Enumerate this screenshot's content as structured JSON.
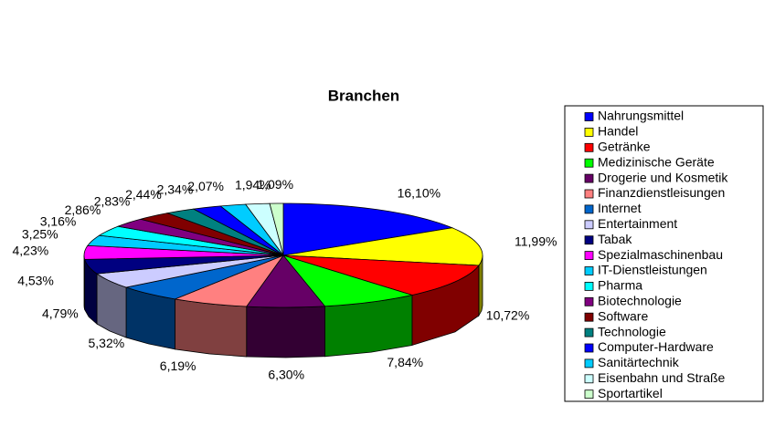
{
  "chart_data": {
    "type": "pie3d",
    "title": "Branchen",
    "categories": [
      "Nahrungsmittel",
      "Handel",
      "Getränke",
      "Medizinische Geräte",
      "Drogerie und Kosmetik",
      "Finanzdienstleisungen",
      "Internet",
      "Entertainment",
      "Tabak",
      "Spezialmaschinenbau",
      "IT-Dienstleistungen",
      "Pharma",
      "Biotechnologie",
      "Software",
      "Technologie",
      "Computer-Hardware",
      "Sanitärtechnik",
      "Eisenbahn und Straße",
      "Sportartikel"
    ],
    "values": [
      16.1,
      11.99,
      10.72,
      7.84,
      6.3,
      6.19,
      5.32,
      4.79,
      4.53,
      4.23,
      3.25,
      3.16,
      2.86,
      2.83,
      2.44,
      2.34,
      2.07,
      1.94,
      1.09
    ],
    "value_labels": [
      "16,10%",
      "11,99%",
      "10,72%",
      "7,84%",
      "6,30%",
      "6,19%",
      "5,32%",
      "4,79%",
      "4,53%",
      "4,23%",
      "3,25%",
      "3,16%",
      "2,86%",
      "2,83%",
      "2,44%",
      "2,34%",
      "2,07%",
      "1,94%",
      "1,09%"
    ],
    "colors": [
      "#0000ff",
      "#ffff00",
      "#ff0000",
      "#00ff00",
      "#660066",
      "#ff8080",
      "#0066cc",
      "#ccccff",
      "#000080",
      "#ff00ff",
      "#00ccff",
      "#00ffff",
      "#800080",
      "#800000",
      "#008080",
      "#0000ff",
      "#00ccff",
      "#ccffff",
      "#ccffcc"
    ],
    "legend": "right"
  }
}
